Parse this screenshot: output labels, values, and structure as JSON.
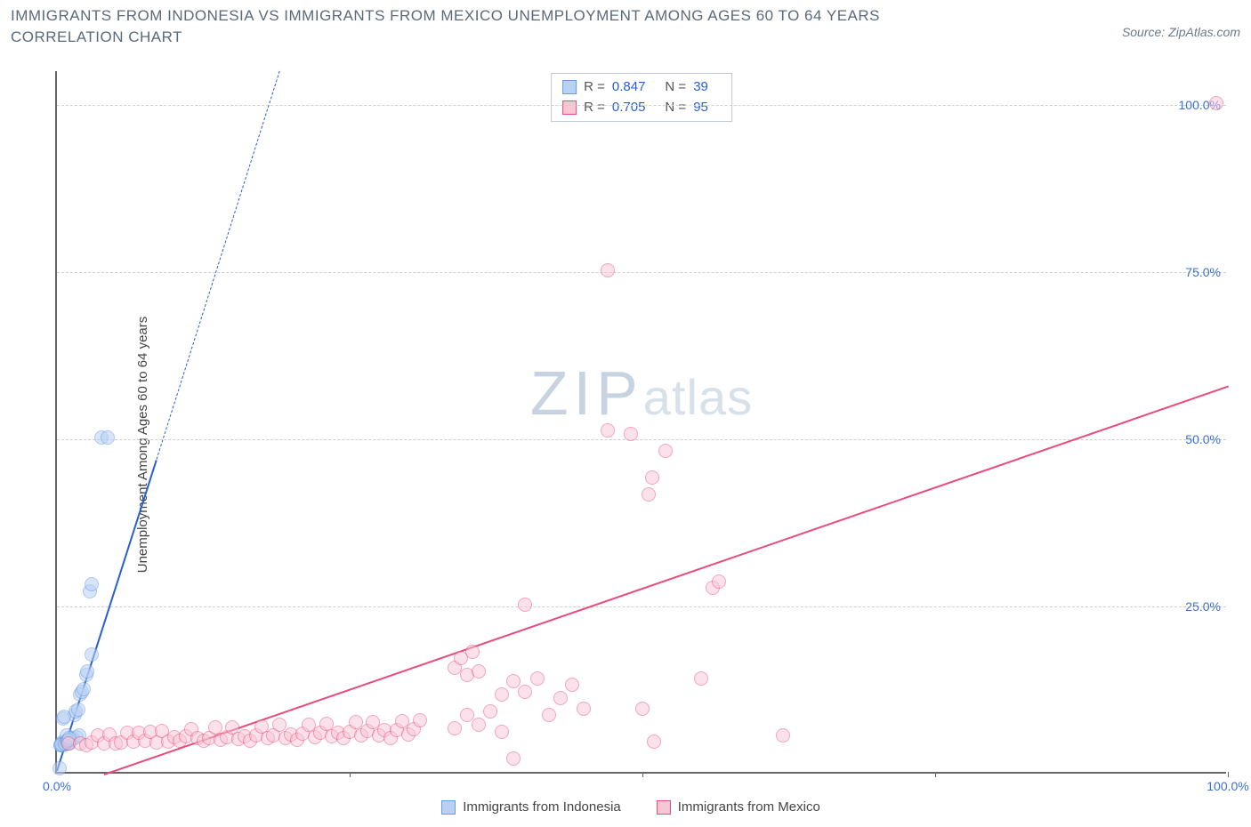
{
  "title": "IMMIGRANTS FROM INDONESIA VS IMMIGRANTS FROM MEXICO UNEMPLOYMENT AMONG AGES 60 TO 64 YEARS CORRELATION CHART",
  "source": "Source: ZipAtlas.com",
  "ylabel": "Unemployment Among Ages 60 to 64 years",
  "watermark_a": "ZIP",
  "watermark_b": "atlas",
  "chart": {
    "type": "scatter",
    "xlim": [
      0,
      100
    ],
    "ylim": [
      0,
      105
    ],
    "xticks": [
      0,
      25,
      50,
      75,
      100
    ],
    "xtick_labels": [
      "0.0%",
      "",
      "",
      "",
      "100.0%"
    ],
    "yticks": [
      25,
      50,
      75,
      100
    ],
    "ytick_labels": [
      "25.0%",
      "50.0%",
      "75.0%",
      "100.0%"
    ],
    "grid_color": "#d0d0d0",
    "tick_label_color": "#3a6fd8",
    "axis_color": "#666666",
    "background_color": "#ffffff",
    "marker_radius": 8,
    "marker_stroke_width": 1.5,
    "series": [
      {
        "name": "Immigrants from Indonesia",
        "fill": "#b9d1f4",
        "stroke": "#6a9de8",
        "fill_opacity": 0.55,
        "R": "0.847",
        "N": "39",
        "regression": {
          "x1": 0,
          "y1": 0.5,
          "x2": 8.5,
          "y2": 47,
          "dash_x2": 19,
          "dash_y2": 105,
          "color": "#2a5fd0",
          "width": 2.5
        },
        "points": [
          [
            0.3,
            4
          ],
          [
            0.4,
            4.2
          ],
          [
            0.5,
            4
          ],
          [
            0.5,
            4.5
          ],
          [
            0.6,
            4.3
          ],
          [
            0.7,
            4.1
          ],
          [
            0.8,
            4.4
          ],
          [
            0.8,
            5.5
          ],
          [
            0.9,
            4.2
          ],
          [
            1.0,
            4.6
          ],
          [
            1.1,
            4.3
          ],
          [
            1.2,
            4.8
          ],
          [
            1.3,
            5.0
          ],
          [
            1.4,
            4.9
          ],
          [
            1.5,
            8.5
          ],
          [
            1.6,
            9.0
          ],
          [
            1.7,
            5.2
          ],
          [
            1.8,
            9.3
          ],
          [
            1.9,
            5.4
          ],
          [
            2.0,
            11.5
          ],
          [
            2.1,
            12.0
          ],
          [
            2.3,
            12.3
          ],
          [
            2.5,
            14.5
          ],
          [
            2.6,
            15.0
          ],
          [
            3.0,
            17.5
          ],
          [
            2.8,
            27.0
          ],
          [
            3.0,
            28.0
          ],
          [
            3.8,
            50.0
          ],
          [
            4.3,
            50.0
          ],
          [
            0.2,
            0.5
          ],
          [
            0.3,
            4.0
          ],
          [
            0.4,
            4.1
          ],
          [
            0.5,
            8.0
          ],
          [
            0.6,
            8.2
          ],
          [
            0.7,
            4.3
          ],
          [
            0.8,
            4.5
          ],
          [
            0.9,
            4.6
          ],
          [
            1.0,
            4.8
          ],
          [
            1.1,
            5.0
          ]
        ]
      },
      {
        "name": "Immigrants from Mexico",
        "fill": "#f9c6d6",
        "stroke": "#e94b7a",
        "fill_opacity": 0.5,
        "R": "0.705",
        "N": "95",
        "regression": {
          "x1": 4,
          "y1": 0,
          "x2": 100,
          "y2": 58,
          "color": "#e94b7a",
          "width": 2.5
        },
        "points": [
          [
            1,
            4.2
          ],
          [
            2,
            4.3
          ],
          [
            2.5,
            4.0
          ],
          [
            3,
            4.4
          ],
          [
            3.5,
            5.5
          ],
          [
            4,
            4.2
          ],
          [
            4.5,
            5.6
          ],
          [
            5,
            4.3
          ],
          [
            5.5,
            4.4
          ],
          [
            6,
            5.8
          ],
          [
            6.5,
            4.5
          ],
          [
            7,
            5.9
          ],
          [
            7.5,
            4.6
          ],
          [
            8,
            6.0
          ],
          [
            8.5,
            4.4
          ],
          [
            9,
            6.1
          ],
          [
            9.5,
            4.5
          ],
          [
            10,
            5.2
          ],
          [
            10.5,
            4.6
          ],
          [
            11,
            5.3
          ],
          [
            11.5,
            6.4
          ],
          [
            12,
            5.0
          ],
          [
            12.5,
            4.7
          ],
          [
            13,
            5.1
          ],
          [
            13.5,
            6.6
          ],
          [
            14,
            4.8
          ],
          [
            14.5,
            5.2
          ],
          [
            15,
            6.7
          ],
          [
            15.5,
            4.9
          ],
          [
            16,
            5.3
          ],
          [
            16.5,
            4.7
          ],
          [
            17,
            5.4
          ],
          [
            17.5,
            6.8
          ],
          [
            18,
            5.0
          ],
          [
            18.5,
            5.5
          ],
          [
            19,
            7.0
          ],
          [
            19.5,
            5.1
          ],
          [
            20,
            5.6
          ],
          [
            20.5,
            4.8
          ],
          [
            21,
            5.7
          ],
          [
            21.5,
            7.1
          ],
          [
            22,
            5.2
          ],
          [
            22.5,
            5.8
          ],
          [
            23,
            7.2
          ],
          [
            23.5,
            5.3
          ],
          [
            24,
            5.9
          ],
          [
            24.5,
            5.0
          ],
          [
            25,
            6.0
          ],
          [
            25.5,
            7.4
          ],
          [
            26,
            5.4
          ],
          [
            26.5,
            6.1
          ],
          [
            27,
            7.5
          ],
          [
            27.5,
            5.5
          ],
          [
            28,
            6.2
          ],
          [
            28.5,
            5.1
          ],
          [
            29,
            6.3
          ],
          [
            29.5,
            7.6
          ],
          [
            30,
            5.6
          ],
          [
            30.5,
            6.4
          ],
          [
            31,
            7.7
          ],
          [
            34,
            6.5
          ],
          [
            35,
            8.5
          ],
          [
            36,
            7.0
          ],
          [
            37,
            9.0
          ],
          [
            38,
            6.0
          ],
          [
            39,
            2.0
          ],
          [
            34,
            15.5
          ],
          [
            34.5,
            17.0
          ],
          [
            35,
            14.5
          ],
          [
            35.5,
            18.0
          ],
          [
            36,
            15.0
          ],
          [
            38,
            11.5
          ],
          [
            39,
            13.5
          ],
          [
            40,
            12.0
          ],
          [
            41,
            14.0
          ],
          [
            42,
            8.5
          ],
          [
            43,
            11.0
          ],
          [
            44,
            13.0
          ],
          [
            45,
            9.5
          ],
          [
            40,
            25.0
          ],
          [
            50,
            9.5
          ],
          [
            51,
            4.5
          ],
          [
            47,
            75.0
          ],
          [
            49,
            50.5
          ],
          [
            50.5,
            41.5
          ],
          [
            50.8,
            44.0
          ],
          [
            47,
            51.0
          ],
          [
            52,
            48.0
          ],
          [
            55,
            14.0
          ],
          [
            56,
            27.5
          ],
          [
            56.5,
            28.5
          ],
          [
            62,
            5.5
          ],
          [
            99,
            100.0
          ]
        ]
      }
    ]
  },
  "bottom_legend": [
    {
      "label": "Immigrants from Indonesia",
      "fill": "#b9d1f4",
      "stroke": "#6a9de8"
    },
    {
      "label": "Immigrants from Mexico",
      "fill": "#f9c6d6",
      "stroke": "#e94b7a"
    }
  ]
}
